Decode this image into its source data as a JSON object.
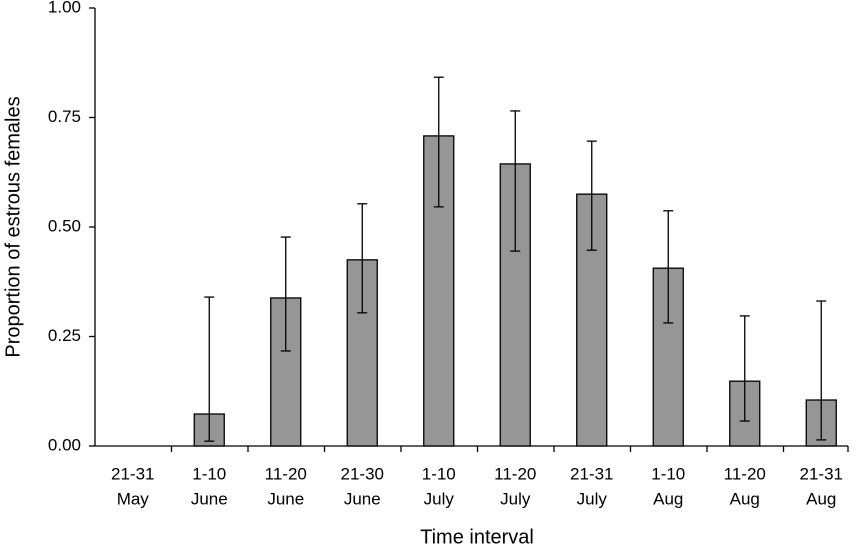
{
  "chart_data": {
    "type": "bar",
    "x_label": "Time interval",
    "y_label": "Proportion of estrous females",
    "categories": [
      [
        "21-31",
        "May"
      ],
      [
        "1-10",
        "June"
      ],
      [
        "11-20",
        "June"
      ],
      [
        "21-30",
        "June"
      ],
      [
        "1-10",
        "July"
      ],
      [
        "11-20",
        "July"
      ],
      [
        "21-31",
        "July"
      ],
      [
        "1-10",
        "Aug"
      ],
      [
        "11-20",
        "Aug"
      ],
      [
        "21-31",
        "Aug"
      ]
    ],
    "values": [
      0,
      0.073,
      0.338,
      0.425,
      0.708,
      0.644,
      0.575,
      0.406,
      0.148,
      0.105
    ],
    "lower": [
      null,
      0.011,
      0.217,
      0.304,
      0.546,
      0.445,
      0.447,
      0.281,
      0.057,
      0.014
    ],
    "upper": [
      null,
      0.34,
      0.477,
      0.553,
      0.842,
      0.765,
      0.696,
      0.537,
      0.297,
      0.331
    ],
    "color": "#969696",
    "ylim": [
      0,
      1
    ],
    "yticks": [
      {
        "value": 0,
        "label": "0.00"
      },
      {
        "value": 0.25,
        "label": "0.25"
      },
      {
        "value": 0.5,
        "label": "0.50"
      },
      {
        "value": 0.75,
        "label": "0.75"
      },
      {
        "value": 1,
        "label": "1.00"
      }
    ]
  }
}
